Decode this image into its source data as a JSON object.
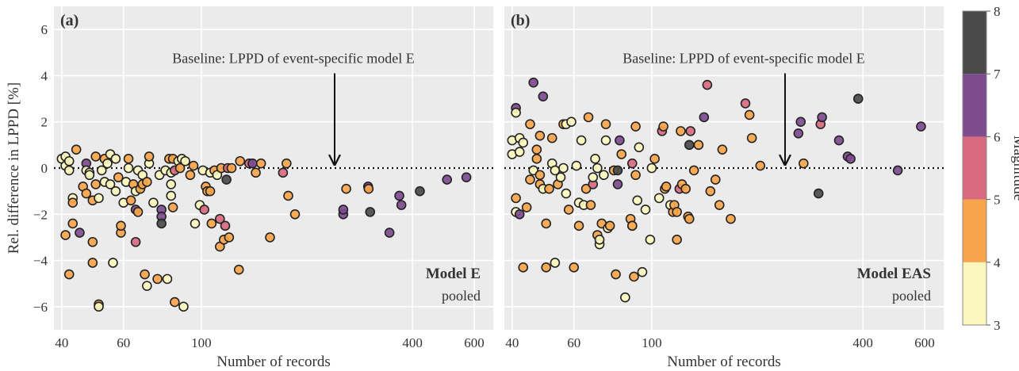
{
  "colorbar": {
    "label": "Magnitude",
    "min": 3,
    "max": 8,
    "ticks": [
      "3",
      "4",
      "5",
      "6",
      "7",
      "8"
    ],
    "bins": [
      {
        "from": 3,
        "to": 4,
        "color": "#fbf7bd"
      },
      {
        "from": 4,
        "to": 5,
        "color": "#f7a54b"
      },
      {
        "from": 5,
        "to": 6,
        "color": "#d76a7f"
      },
      {
        "from": 6,
        "to": 7,
        "color": "#7e4b8f"
      },
      {
        "from": 7,
        "to": 8,
        "color": "#4a4a4a"
      }
    ]
  },
  "chart_data": [
    {
      "type": "scatter",
      "panel_label": "(a)",
      "xlabel": "Number of records",
      "ylabel": "Rel. difference in LPPD [%]",
      "xscale": "log",
      "xlim": [
        38,
        680
      ],
      "ylim": [
        -7,
        7
      ],
      "x_ticks": [
        40,
        60,
        100,
        400,
        600
      ],
      "x_tick_labels": [
        "40",
        "60",
        "100",
        "400",
        "600"
      ],
      "y_ticks": [
        -6,
        -4,
        -2,
        0,
        2,
        4,
        6
      ],
      "y_tick_labels": [
        "−6",
        "−4",
        "−2",
        "0",
        "2",
        "4",
        "6"
      ],
      "baseline_y": 0,
      "annotation": {
        "text": "Baseline: LPPD of event-specific model E",
        "arrow_x": 240,
        "arrow_from_y": 4.1,
        "arrow_to_y": 0.15
      },
      "model_title": "Model E",
      "model_subtitle": "pooled",
      "grid": true,
      "points": [
        [
          40,
          0.4,
          3.5
        ],
        [
          41,
          0.5,
          3.5
        ],
        [
          41,
          0.1,
          3.5
        ],
        [
          42,
          0.3,
          3.5
        ],
        [
          42,
          -0.1,
          3.5
        ],
        [
          41,
          -2.9,
          4.5
        ],
        [
          42,
          -4.6,
          4.5
        ],
        [
          43,
          -1.3,
          3.5
        ],
        [
          43,
          -2.4,
          4.5
        ],
        [
          43,
          -1.5,
          4.5
        ],
        [
          44,
          0.8,
          4.5
        ],
        [
          45,
          -2.8,
          6.5
        ],
        [
          46,
          -0.8,
          4.5
        ],
        [
          47,
          0.2,
          6.5
        ],
        [
          47,
          -1.1,
          4.5
        ],
        [
          47,
          -0.1,
          3.5
        ],
        [
          48,
          -0.2,
          3.5
        ],
        [
          48,
          -0.3,
          3.5
        ],
        [
          49,
          -1.4,
          4.5
        ],
        [
          49,
          -3.2,
          4.5
        ],
        [
          49,
          -4.1,
          4.5
        ],
        [
          50,
          0.5,
          4.5
        ],
        [
          50,
          -0.7,
          4.5
        ],
        [
          51,
          -5.9,
          4.5
        ],
        [
          51,
          -6.0,
          3.5
        ],
        [
          51,
          -1.3,
          3.5
        ],
        [
          52,
          -0.1,
          3.5
        ],
        [
          53,
          0.4,
          4.5
        ],
        [
          53,
          -0.6,
          3.5
        ],
        [
          54,
          0.2,
          3.5
        ],
        [
          55,
          0.6,
          3.5
        ],
        [
          55,
          -0.7,
          3.5
        ],
        [
          56,
          -4.1,
          3.5
        ],
        [
          57,
          0.4,
          3.5
        ],
        [
          57,
          -1.0,
          3.5
        ],
        [
          58,
          -0.4,
          4.5
        ],
        [
          59,
          -2.8,
          4.5
        ],
        [
          59,
          -2.5,
          4.5
        ],
        [
          60,
          -1.5,
          3.5
        ],
        [
          61,
          -0.6,
          3.5
        ],
        [
          62,
          0.0,
          3.5
        ],
        [
          62,
          0.4,
          4.5
        ],
        [
          63,
          -1.4,
          4.5
        ],
        [
          64,
          -0.7,
          4.5
        ],
        [
          65,
          -1.0,
          3.5
        ],
        [
          65,
          -1.8,
          6.5
        ],
        [
          65,
          -3.2,
          5.5
        ],
        [
          66,
          -0.1,
          3.5
        ],
        [
          66,
          -1.9,
          4.5
        ],
        [
          67,
          -0.9,
          4.5
        ],
        [
          68,
          -0.3,
          3.5
        ],
        [
          68,
          -0.7,
          4.5
        ],
        [
          69,
          -4.6,
          4.5
        ],
        [
          70,
          -0.6,
          4.5
        ],
        [
          70,
          -5.1,
          3.5
        ],
        [
          71,
          0.2,
          3.5
        ],
        [
          71,
          0.5,
          4.5
        ],
        [
          73,
          -1.5,
          3.5
        ],
        [
          75,
          -4.8,
          4.5
        ],
        [
          76,
          -0.3,
          3.5
        ],
        [
          77,
          -1.8,
          6.5
        ],
        [
          77,
          -2.1,
          6.5
        ],
        [
          77,
          -2.4,
          7.5
        ],
        [
          79,
          -0.1,
          3.5
        ],
        [
          80,
          -4.8,
          3.5
        ],
        [
          81,
          0.4,
          4.5
        ],
        [
          82,
          -0.7,
          3.5
        ],
        [
          82,
          -0.2,
          3.5
        ],
        [
          82,
          -1.2,
          3.5
        ],
        [
          83,
          -1.7,
          4.5
        ],
        [
          83,
          0.4,
          4.5
        ],
        [
          84,
          -0.1,
          5.5
        ],
        [
          84,
          -5.8,
          4.5
        ],
        [
          86,
          0.3,
          3.5
        ],
        [
          87,
          0.0,
          4.5
        ],
        [
          88,
          0.4,
          3.5
        ],
        [
          89,
          -6.0,
          3.5
        ],
        [
          90,
          0.3,
          3.5
        ],
        [
          93,
          -0.3,
          4.5
        ],
        [
          95,
          0.1,
          4.5
        ],
        [
          96,
          -2.4,
          3.5
        ],
        [
          99,
          -1.6,
          3.5
        ],
        [
          101,
          -0.1,
          3.5
        ],
        [
          102,
          -1.8,
          5.5
        ],
        [
          103,
          -0.8,
          4.5
        ],
        [
          104,
          -1.0,
          4.5
        ],
        [
          106,
          -0.2,
          3.5
        ],
        [
          106,
          -1.0,
          4.5
        ],
        [
          107,
          -2.4,
          4.5
        ],
        [
          109,
          -0.1,
          4.5
        ],
        [
          111,
          -0.3,
          3.5
        ],
        [
          113,
          -3.4,
          4.5
        ],
        [
          113,
          -2.2,
          5.5
        ],
        [
          114,
          0.0,
          4.5
        ],
        [
          116,
          -3.1,
          4.5
        ],
        [
          117,
          -2.5,
          5.5
        ],
        [
          118,
          -0.5,
          7.5
        ],
        [
          119,
          0.0,
          5.5
        ],
        [
          120,
          -3.0,
          4.5
        ],
        [
          122,
          0.0,
          4.5
        ],
        [
          128,
          -4.4,
          4.5
        ],
        [
          129,
          0.3,
          4.5
        ],
        [
          137,
          0.2,
          5.5
        ],
        [
          140,
          0.2,
          6.5
        ],
        [
          143,
          -0.2,
          4.5
        ],
        [
          148,
          0.2,
          4.5
        ],
        [
          157,
          -3.0,
          4.5
        ],
        [
          171,
          -0.2,
          5.5
        ],
        [
          175,
          0.2,
          4.5
        ],
        [
          177,
          -1.2,
          4.5
        ],
        [
          185,
          -2.0,
          4.5
        ],
        [
          254,
          -2.0,
          6.5
        ],
        [
          254,
          -1.8,
          6.5
        ],
        [
          259,
          -0.9,
          4.5
        ],
        [
          299,
          -0.8,
          6.5
        ],
        [
          300,
          -0.9,
          4.5
        ],
        [
          303,
          -1.9,
          7.5
        ],
        [
          344,
          -2.8,
          6.5
        ],
        [
          367,
          -1.2,
          6.5
        ],
        [
          372,
          -1.6,
          6.5
        ],
        [
          420,
          -1.0,
          7.5
        ],
        [
          502,
          -0.5,
          6.5
        ],
        [
          570,
          -0.4,
          6.5
        ]
      ]
    },
    {
      "type": "scatter",
      "panel_label": "(b)",
      "xlabel": "Number of records",
      "ylabel": "",
      "xscale": "log",
      "xlim": [
        38,
        680
      ],
      "ylim": [
        -7,
        7
      ],
      "x_ticks": [
        40,
        60,
        100,
        400,
        600
      ],
      "x_tick_labels": [
        "40",
        "60",
        "100",
        "400",
        "600"
      ],
      "baseline_y": 0,
      "annotation": {
        "text": "Baseline: LPPD of event-specific model E",
        "arrow_x": 240,
        "arrow_from_y": 4.1,
        "arrow_to_y": 0.15
      },
      "model_title": "Model EAS",
      "model_subtitle": "pooled",
      "grid": true,
      "points": [
        [
          40,
          0.6,
          3.5
        ],
        [
          40,
          1.2,
          3.5
        ],
        [
          41,
          2.6,
          6.5
        ],
        [
          41,
          2.4,
          3.5
        ],
        [
          41,
          -1.3,
          4.5
        ],
        [
          41,
          -1.9,
          3.5
        ],
        [
          42,
          -2.0,
          6.5
        ],
        [
          42,
          1.3,
          3.5
        ],
        [
          42,
          0.7,
          3.5
        ],
        [
          43,
          -4.3,
          4.5
        ],
        [
          43,
          1.1,
          3.5
        ],
        [
          44,
          -1.7,
          4.5
        ],
        [
          45,
          -0.5,
          4.5
        ],
        [
          45,
          1.9,
          4.5
        ],
        [
          46,
          3.7,
          6.5
        ],
        [
          46,
          -0.1,
          3.5
        ],
        [
          47,
          0.4,
          4.5
        ],
        [
          47,
          0.8,
          4.5
        ],
        [
          48,
          -0.7,
          4.5
        ],
        [
          48,
          -0.3,
          4.5
        ],
        [
          48,
          1.4,
          4.5
        ],
        [
          49,
          3.1,
          6.5
        ],
        [
          49,
          -0.9,
          3.5
        ],
        [
          50,
          -4.3,
          4.5
        ],
        [
          50,
          -2.4,
          4.5
        ],
        [
          51,
          -0.9,
          4.5
        ],
        [
          52,
          1.3,
          4.5
        ],
        [
          52,
          0.2,
          3.5
        ],
        [
          53,
          -4.1,
          3.5
        ],
        [
          53,
          -0.1,
          3.5
        ],
        [
          54,
          -0.7,
          4.5
        ],
        [
          55,
          -0.4,
          3.5
        ],
        [
          56,
          0.0,
          3.5
        ],
        [
          56,
          1.9,
          4.5
        ],
        [
          57,
          -1.1,
          3.5
        ],
        [
          57,
          1.9,
          3.5
        ],
        [
          58,
          -1.8,
          4.5
        ],
        [
          59,
          2.0,
          3.5
        ],
        [
          60,
          -4.3,
          4.5
        ],
        [
          61,
          0.1,
          3.5
        ],
        [
          62,
          -2.5,
          4.5
        ],
        [
          62,
          -1.5,
          3.5
        ],
        [
          63,
          1.2,
          3.5
        ],
        [
          64,
          -1.6,
          3.5
        ],
        [
          65,
          -0.9,
          4.5
        ],
        [
          66,
          2.2,
          4.5
        ],
        [
          67,
          -1.6,
          4.5
        ],
        [
          68,
          -0.7,
          5.5
        ],
        [
          68,
          -0.4,
          3.5
        ],
        [
          69,
          0.4,
          3.5
        ],
        [
          70,
          0.0,
          3.5
        ],
        [
          70,
          -2.9,
          4.5
        ],
        [
          71,
          -3.3,
          3.5
        ],
        [
          71,
          -3.1,
          3.5
        ],
        [
          72,
          -2.4,
          4.5
        ],
        [
          73,
          -0.3,
          3.5
        ],
        [
          74,
          1.2,
          3.5
        ],
        [
          74,
          1.9,
          4.5
        ],
        [
          75,
          -2.6,
          3.5
        ],
        [
          76,
          -2.5,
          4.5
        ],
        [
          78,
          -0.1,
          4.5
        ],
        [
          79,
          -4.6,
          4.5
        ],
        [
          80,
          -0.1,
          7.5
        ],
        [
          80,
          -0.7,
          6.5
        ],
        [
          81,
          1.2,
          6.5
        ],
        [
          82,
          0.6,
          4.5
        ],
        [
          84,
          -5.6,
          3.5
        ],
        [
          87,
          -2.2,
          4.5
        ],
        [
          88,
          0.2,
          5.5
        ],
        [
          88,
          -2.5,
          3.5
        ],
        [
          88,
          -2.5,
          4.5
        ],
        [
          89,
          -4.7,
          4.5
        ],
        [
          90,
          -0.3,
          4.5
        ],
        [
          90,
          1.8,
          4.5
        ],
        [
          91,
          -1.4,
          3.5
        ],
        [
          92,
          0.9,
          3.5
        ],
        [
          94,
          -4.5,
          3.5
        ],
        [
          96,
          -1.8,
          3.5
        ],
        [
          99,
          -3.1,
          3.5
        ],
        [
          100,
          0.0,
          3.5
        ],
        [
          102,
          0.4,
          4.5
        ],
        [
          105,
          -1.3,
          3.5
        ],
        [
          107,
          1.6,
          5.5
        ],
        [
          108,
          1.8,
          4.5
        ],
        [
          109,
          -0.9,
          4.5
        ],
        [
          110,
          -0.8,
          4.5
        ],
        [
          113,
          -1.6,
          3.5
        ],
        [
          115,
          -1.9,
          4.5
        ],
        [
          116,
          -1.6,
          4.5
        ],
        [
          118,
          -3.1,
          4.5
        ],
        [
          118,
          -1.9,
          4.5
        ],
        [
          120,
          -0.9,
          5.5
        ],
        [
          121,
          1.6,
          4.5
        ],
        [
          122,
          -0.7,
          4.5
        ],
        [
          125,
          -0.9,
          4.5
        ],
        [
          127,
          -2.1,
          4.5
        ],
        [
          128,
          -2.2,
          4.5
        ],
        [
          128,
          1.0,
          7.5
        ],
        [
          129,
          1.6,
          5.5
        ],
        [
          132,
          -0.1,
          4.5
        ],
        [
          136,
          1.0,
          4.5
        ],
        [
          141,
          2.2,
          6.5
        ],
        [
          144,
          3.6,
          5.5
        ],
        [
          147,
          -1.0,
          4.5
        ],
        [
          152,
          -0.5,
          4.5
        ],
        [
          156,
          -1.6,
          4.5
        ],
        [
          159,
          0.8,
          4.5
        ],
        [
          168,
          -2.2,
          4.5
        ],
        [
          185,
          2.8,
          5.5
        ],
        [
          190,
          2.3,
          4.5
        ],
        [
          193,
          1.3,
          4.5
        ],
        [
          204,
          0.1,
          4.5
        ],
        [
          262,
          1.5,
          6.5
        ],
        [
          266,
          2.0,
          6.5
        ],
        [
          271,
          0.2,
          4.5
        ],
        [
          299,
          -1.1,
          7.5
        ],
        [
          303,
          1.9,
          5.5
        ],
        [
          306,
          2.2,
          6.5
        ],
        [
          342,
          1.2,
          6.5
        ],
        [
          362,
          0.5,
          6.5
        ],
        [
          369,
          0.4,
          6.5
        ],
        [
          388,
          3.0,
          7.5
        ],
        [
          503,
          -0.1,
          6.5
        ],
        [
          586,
          1.8,
          6.5
        ]
      ]
    }
  ]
}
